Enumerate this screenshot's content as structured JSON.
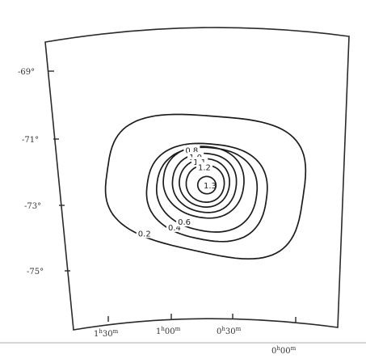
{
  "chart_data": {
    "type": "contour",
    "title": "",
    "xlabel": "",
    "ylabel": "",
    "x_ticks": [
      {
        "label": "1h30m",
        "main": "1",
        "sup1": "h",
        "mid": "30",
        "sup2": "m",
        "value": 22.5
      },
      {
        "label": "1h00m",
        "main": "1",
        "sup1": "h",
        "mid": "00",
        "sup2": "m",
        "value": 15.0
      },
      {
        "label": "0h30m",
        "main": "0",
        "sup1": "h",
        "mid": "30",
        "sup2": "m",
        "value": 7.5
      },
      {
        "label": "0h00m",
        "main": "0",
        "sup1": "h",
        "mid": "00",
        "sup2": "m",
        "value": 0.0
      }
    ],
    "y_ticks": [
      {
        "label": "-69°",
        "value": -69
      },
      {
        "label": "-71°",
        "value": -71
      },
      {
        "label": "-73°",
        "value": -73
      },
      {
        "label": "-75°",
        "value": -75
      }
    ],
    "peak": {
      "ra_deg": 13.0,
      "dec_deg": -72.3
    },
    "contours": [
      {
        "level": "0.2",
        "label": "0.2",
        "ra_offset_deg": 13.0,
        "dec_offset_deg": 2.2
      },
      {
        "level": "0.4",
        "label": "0.4",
        "ra_offset_deg": 7.9,
        "dec_offset_deg": 1.55
      },
      {
        "level": "0.6",
        "label": "0.6",
        "ra_offset_deg": 6.6,
        "dec_offset_deg": 1.35
      },
      {
        "level": "0.8",
        "label": "0.8",
        "ra_offset_deg": 5.3,
        "dec_offset_deg": 1.15
      },
      {
        "level": "1.0",
        "label": "1.0",
        "ra_offset_deg": 4.2,
        "dec_offset_deg": 0.95
      },
      {
        "level": "1.1",
        "label": "1.1",
        "ra_offset_deg": 3.3,
        "dec_offset_deg": 0.78
      },
      {
        "level": "1.2",
        "label": "1.2",
        "ra_offset_deg": 2.5,
        "dec_offset_deg": 0.6
      },
      {
        "level": "1.3",
        "label": "1.3",
        "ra_offset_deg": 1.2,
        "dec_offset_deg": 0.28
      }
    ]
  }
}
